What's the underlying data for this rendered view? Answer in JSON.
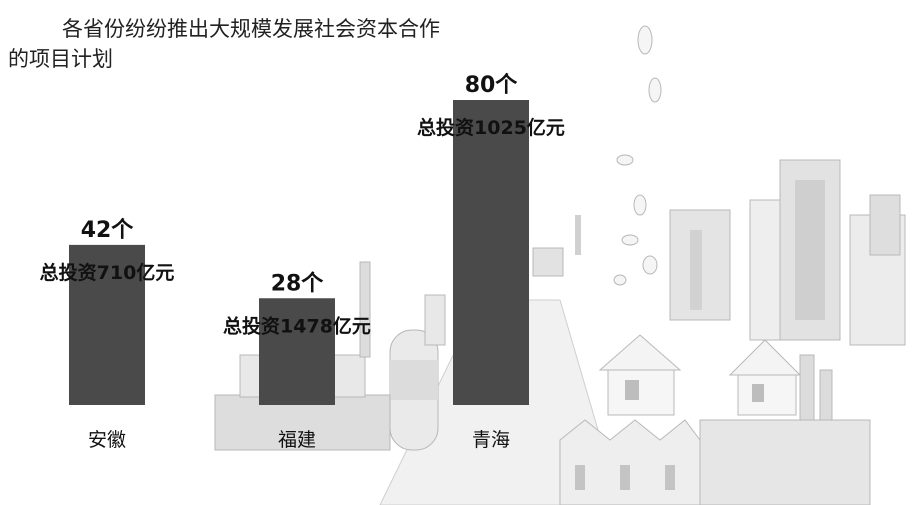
{
  "chart_data": {
    "type": "bar",
    "title_line1": "各省份纷纷推出大规模发展社会资本合作",
    "title_line2": "的项目计划",
    "categories": [
      "安徽",
      "福建",
      "青海"
    ],
    "values": [
      42,
      28,
      80
    ],
    "value_labels": [
      "42个",
      "28个",
      "80个"
    ],
    "investment_labels": [
      "总投资710亿元",
      "总投资1478亿元",
      "总投资1025亿元"
    ],
    "ylim": [
      0,
      80
    ],
    "grid": false,
    "legend": "none",
    "bar_color": "#4a4a4a"
  }
}
